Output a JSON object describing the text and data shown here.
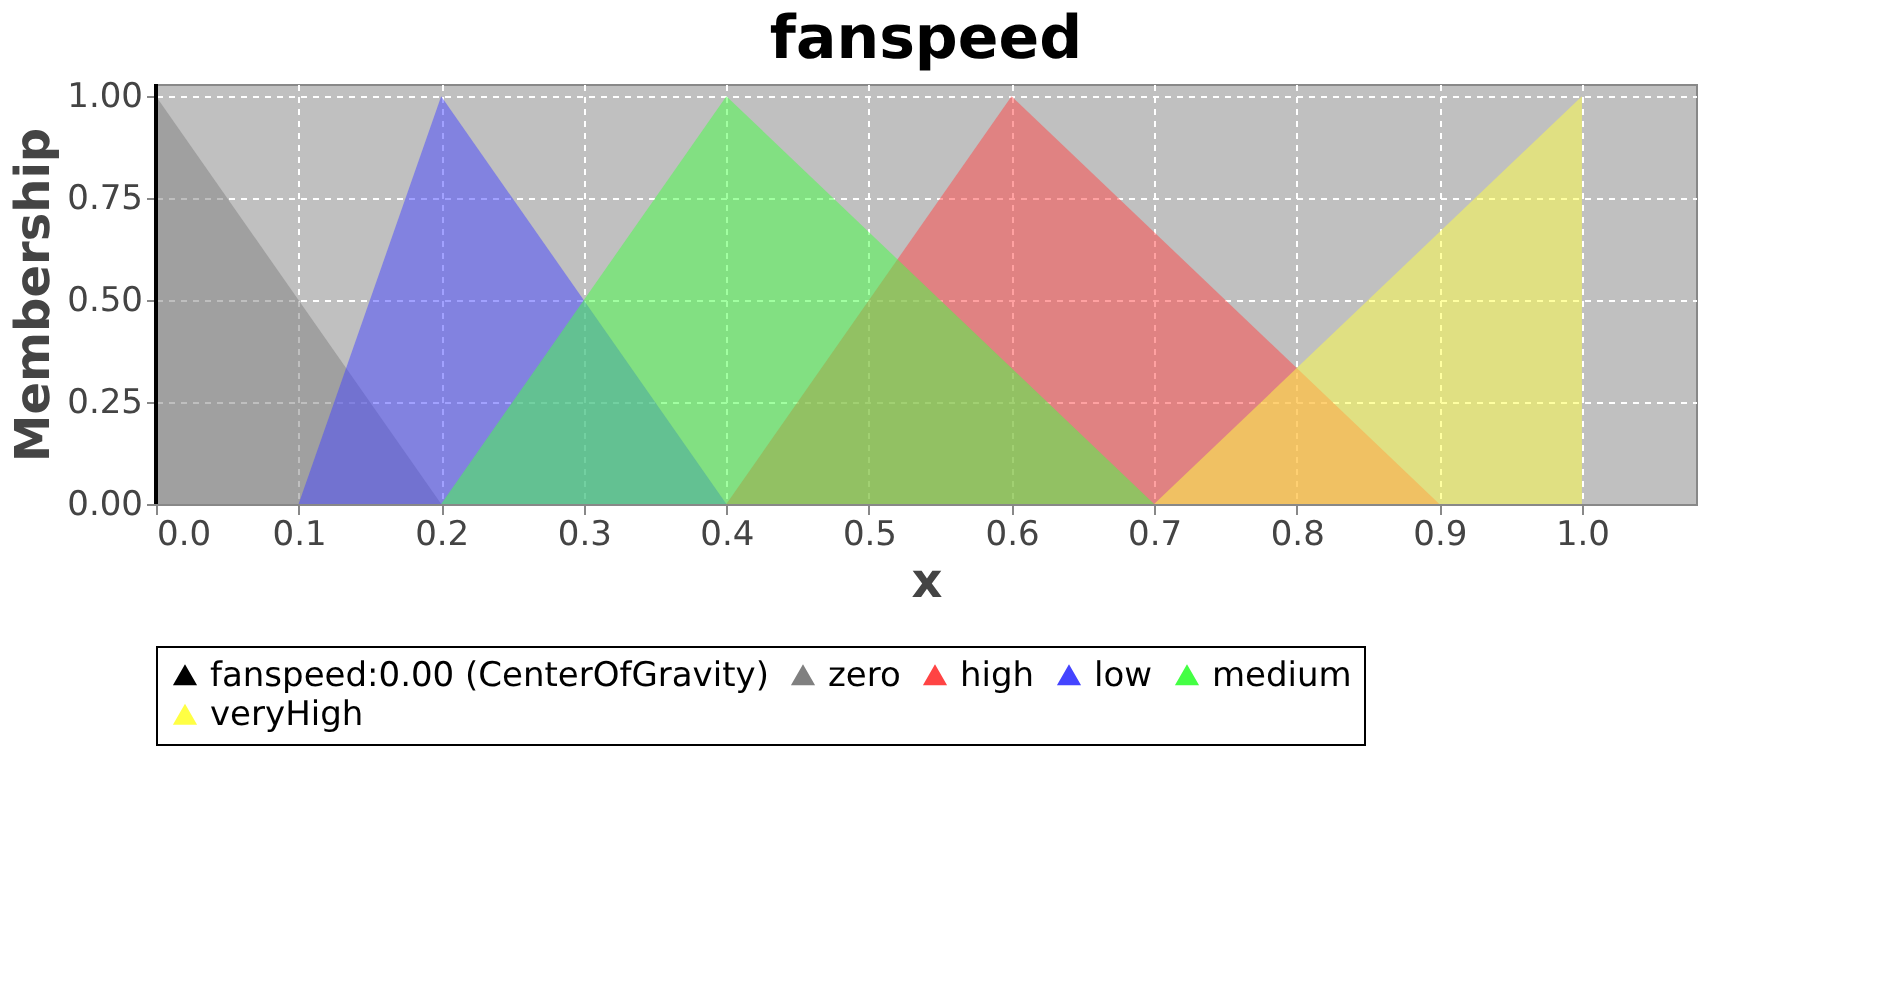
{
  "chart_data": {
    "type": "area",
    "title": "fanspeed",
    "xlabel": "x",
    "ylabel": "Membership",
    "xlim": [
      0,
      1.08
    ],
    "ylim": [
      0,
      1.03
    ],
    "xticks": [
      {
        "value": 0,
        "label": "0.0"
      },
      {
        "value": 0.1,
        "label": "0.1"
      },
      {
        "value": 0.2,
        "label": "0.2"
      },
      {
        "value": 0.3,
        "label": "0.3"
      },
      {
        "value": 0.4,
        "label": "0.4"
      },
      {
        "value": 0.5,
        "label": "0.5"
      },
      {
        "value": 0.6,
        "label": "0.6"
      },
      {
        "value": 0.7,
        "label": "0.7"
      },
      {
        "value": 0.8,
        "label": "0.8"
      },
      {
        "value": 0.9,
        "label": "0.9"
      },
      {
        "value": 1.0,
        "label": "1.0"
      }
    ],
    "yticks": [
      {
        "value": 0,
        "label": "0.00"
      },
      {
        "value": 0.25,
        "label": "0.25"
      },
      {
        "value": 0.5,
        "label": "0.50"
      },
      {
        "value": 0.75,
        "label": "0.75"
      },
      {
        "value": 1.0,
        "label": "1.00"
      }
    ],
    "grid": true,
    "legend": "bottom",
    "ref_lines": [
      {
        "axis": "x",
        "value": 0,
        "label": "fanspeed:0.00 (CenterOfGravity)",
        "color": "#000000"
      }
    ],
    "series": [
      {
        "name": "zero",
        "color": "#808080",
        "x": [
          0,
          0.2
        ],
        "values": [
          1,
          0
        ]
      },
      {
        "name": "high",
        "color": "#ff4444",
        "x": [
          0.4,
          0.6,
          0.9
        ],
        "values": [
          0,
          1,
          0
        ]
      },
      {
        "name": "low",
        "color": "#4444ff",
        "x": [
          0.1,
          0.2,
          0.4
        ],
        "values": [
          0,
          1,
          0
        ]
      },
      {
        "name": "medium",
        "color": "#44ff44",
        "x": [
          0.2,
          0.4,
          0.7
        ],
        "values": [
          0,
          1,
          0
        ]
      },
      {
        "name": "veryHigh",
        "color": "#ffff44",
        "x": [
          0.7,
          1.0
        ],
        "values": [
          0,
          1
        ]
      }
    ]
  }
}
